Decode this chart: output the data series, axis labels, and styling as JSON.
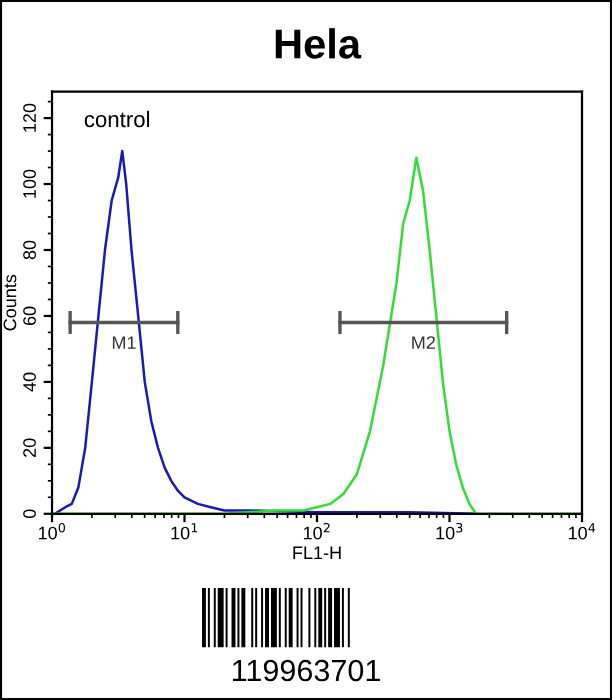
{
  "chart_data": {
    "type": "line",
    "title": "Hela",
    "xlabel": "FL1-H",
    "ylabel": "Counts",
    "log": "x",
    "xlim": [
      1,
      10000
    ],
    "xticks": [
      {
        "value": 1,
        "label": "10$^{0}$"
      },
      {
        "value": 10,
        "label": "10$^{1}$"
      },
      {
        "value": 100,
        "label": "10$^{2}$"
      },
      {
        "value": 1000,
        "label": "10$^{3}$"
      },
      {
        "value": 10000,
        "label": "10$^{4}$"
      }
    ],
    "ylim": [
      0,
      128
    ],
    "yticks": [
      0,
      20,
      40,
      60,
      80,
      100,
      120
    ],
    "grid": false,
    "legend": false,
    "series": [
      {
        "color": "#1a1ab4",
        "x": [
          1.05,
          1.26,
          1.41,
          1.58,
          1.78,
          2.0,
          2.24,
          2.51,
          2.82,
          3.16,
          3.39,
          3.63,
          3.98,
          4.47,
          5.01,
          5.62,
          6.31,
          7.08,
          7.94,
          8.91,
          10.0,
          12.6,
          15.8,
          20.0,
          31.6,
          100,
          500,
          1585
        ],
        "values": [
          0,
          2,
          3,
          8,
          20,
          40,
          60,
          80,
          95,
          102,
          110,
          100,
          80,
          60,
          40,
          28,
          20,
          14,
          10,
          7,
          5,
          3,
          2,
          1,
          1,
          0.5,
          0.5,
          0
        ]
      },
      {
        "color": "#33dd33",
        "x": [
          1.05,
          20,
          50,
          79,
          126,
          158,
          200,
          251,
          316,
          398,
          447,
          501,
          562,
          631,
          708,
          794,
          891,
          1000,
          1122,
          1259,
          1413,
          1585,
          3000,
          10000
        ],
        "values": [
          0,
          0,
          1,
          1,
          3,
          6,
          12,
          25,
          45,
          70,
          88,
          95,
          108,
          98,
          80,
          60,
          40,
          25,
          15,
          8,
          3,
          0,
          0,
          0
        ]
      },
      {
        "type": "line",
        "name": "M1",
        "color": "#555555",
        "x": [
          1.37,
          8.9
        ],
        "values": [
          58,
          58
        ]
      },
      {
        "type": "line",
        "name": "M2",
        "color": "#555555",
        "x": [
          149,
          2700
        ],
        "values": [
          58,
          58
        ]
      }
    ],
    "annotations": [
      "control",
      "119963701"
    ]
  }
}
